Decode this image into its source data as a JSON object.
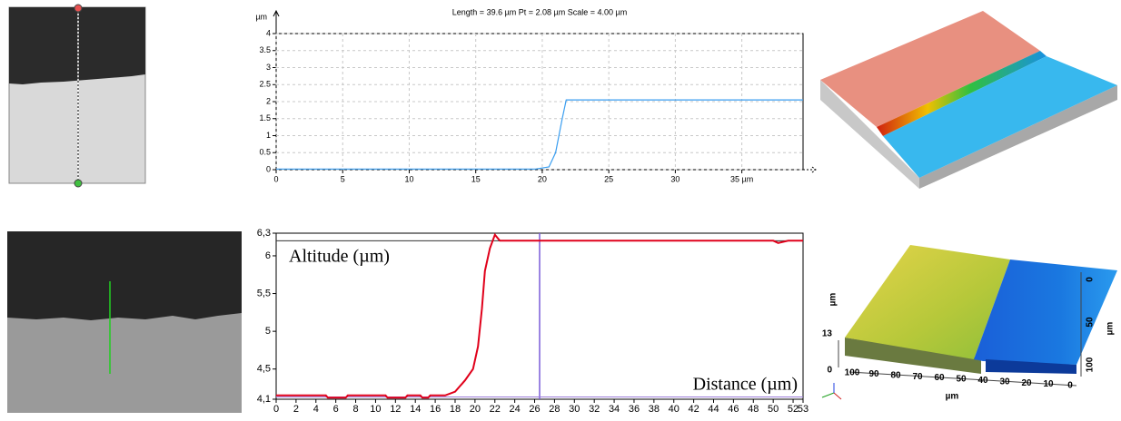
{
  "chart_data": [
    {
      "type": "line",
      "title": "Length = 39.6 µm  Pt = 2.08 µm  Scale = 4.00 µm",
      "y_unit": "µm",
      "x": [
        0,
        5,
        10,
        15,
        19.5,
        20.5,
        21,
        21.5,
        21.8,
        25,
        30,
        35,
        39.6
      ],
      "series": [
        {
          "name": "profile",
          "color": "#3a9ef0",
          "values": [
            0.02,
            0.02,
            0.02,
            0.02,
            0.02,
            0.08,
            0.5,
            1.5,
            2.05,
            2.05,
            2.05,
            2.05,
            2.05
          ]
        }
      ],
      "xlim": [
        0,
        39.6
      ],
      "ylim": [
        0,
        4
      ],
      "xticks": [
        0,
        5,
        10,
        15,
        20,
        25,
        30,
        {
          "value": 35,
          "label": "35 µm"
        }
      ],
      "yticks": [
        0,
        0.5,
        1,
        1.5,
        2,
        2.5,
        3,
        3.5,
        4
      ],
      "grid": true
    },
    {
      "type": "line",
      "annotations": [
        "Altitude (µm)",
        "Distance (µm)"
      ],
      "x": [
        0,
        5,
        5.2,
        7,
        7.2,
        11,
        11.2,
        13,
        13.2,
        14.5,
        14.7,
        15.3,
        15.5,
        17,
        18,
        19,
        19.8,
        20.3,
        20.7,
        21,
        21.5,
        22,
        22.5,
        50,
        50.5,
        51.5,
        53
      ],
      "series": [
        {
          "name": "altitude",
          "color": "#e0001a",
          "values": [
            4.15,
            4.15,
            4.12,
            4.12,
            4.15,
            4.15,
            4.12,
            4.12,
            4.15,
            4.15,
            4.12,
            4.12,
            4.15,
            4.15,
            4.2,
            4.35,
            4.5,
            4.8,
            5.3,
            5.8,
            6.1,
            6.28,
            6.2,
            6.2,
            6.17,
            6.2,
            6.2
          ]
        }
      ],
      "xlim": [
        0,
        53
      ],
      "ylim": [
        4.1,
        6.3
      ],
      "xticks": [
        0,
        2,
        4,
        6,
        8,
        10,
        12,
        14,
        16,
        18,
        20,
        22,
        24,
        26,
        28,
        30,
        32,
        34,
        36,
        38,
        40,
        42,
        44,
        46,
        48,
        50,
        52,
        53
      ],
      "yticks": [
        {
          "value": 4.1,
          "label": "4,1"
        },
        {
          "value": 4.5,
          "label": "4,5"
        },
        5,
        {
          "value": 5.5,
          "label": "5,5"
        },
        6,
        {
          "value": 6.3,
          "label": "6,3"
        }
      ],
      "grid": false,
      "marker_lines": {
        "x": 26.5,
        "y": [
          6.2,
          4.13
        ]
      }
    }
  ],
  "surface_3d": {
    "z_label": "µm",
    "z_ticks": [
      13,
      0
    ],
    "x_ticks": [
      100,
      90,
      80,
      70,
      60,
      50,
      40,
      30,
      20,
      10,
      0
    ],
    "x_label": "µm",
    "y_ticks": [
      0,
      50,
      100
    ],
    "y_label": "µm"
  }
}
